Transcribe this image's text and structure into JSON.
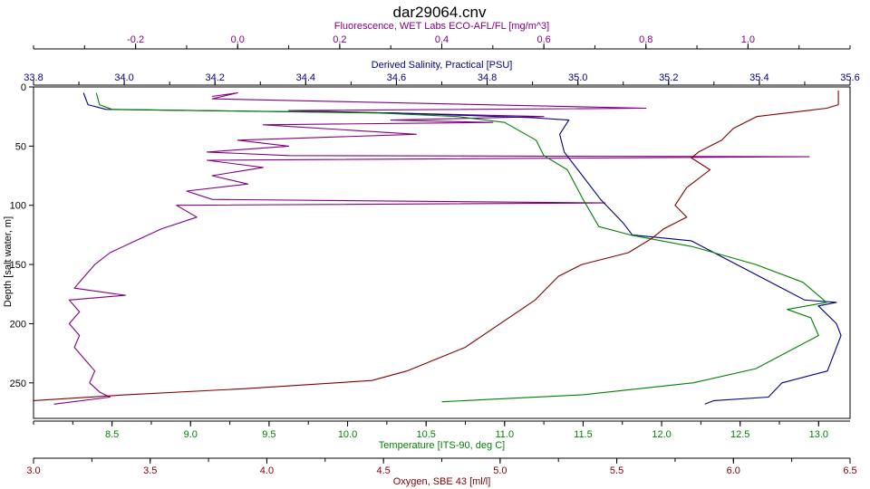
{
  "chart_data": {
    "type": "line",
    "title": "dar29064.cnv",
    "y_axis": {
      "label": "Depth [salt water, m]",
      "range": [
        0,
        280
      ],
      "ticks": [
        0,
        50,
        100,
        150,
        200,
        250
      ],
      "inverted": true
    },
    "x_axes": [
      {
        "id": "fluorescence",
        "position": "top-1",
        "label": "Fluorescence, WET Labs ECO-AFL/FL [mg/m^3]",
        "color": "#800080",
        "range": [
          -0.4,
          1.2
        ],
        "ticks": [
          -0.2,
          0.0,
          0.2,
          0.4,
          0.6,
          0.8,
          1.0
        ],
        "tick_labels": [
          "-0.2",
          "0.0",
          "0.2",
          "0.4",
          "0.6",
          "0.8",
          "1.0"
        ]
      },
      {
        "id": "salinity",
        "position": "top-2",
        "label": "Derived Salinity, Practical [PSU]",
        "color": "#000080",
        "range": [
          33.8,
          35.6
        ],
        "ticks": [
          33.8,
          34.0,
          34.2,
          34.4,
          34.6,
          34.8,
          35.0,
          35.2,
          35.4,
          35.6
        ],
        "tick_labels": [
          "33.8",
          "34.0",
          "34.2",
          "34.4",
          "34.6",
          "34.8",
          "35.0",
          "35.2",
          "35.4",
          "35.6"
        ]
      },
      {
        "id": "temperature",
        "position": "bottom-1",
        "label": "Temperature [ITS-90, deg C]",
        "color": "#008000",
        "range": [
          8.0,
          13.2
        ],
        "ticks": [
          8.5,
          9.0,
          9.5,
          10.0,
          10.5,
          11.0,
          11.5,
          12.0,
          12.5,
          13.0
        ],
        "tick_labels": [
          "8.5",
          "9.0",
          "9.5",
          "10.0",
          "10.5",
          "11.0",
          "11.5",
          "12.0",
          "12.5",
          "13.0"
        ]
      },
      {
        "id": "oxygen",
        "position": "bottom-2",
        "label": "Oxygen, SBE 43 [ml/l]",
        "color": "#800000",
        "range": [
          3.0,
          6.5
        ],
        "ticks": [
          3.0,
          3.5,
          4.0,
          4.5,
          5.0,
          5.5,
          6.0,
          6.5
        ],
        "tick_labels": [
          "3.0",
          "3.5",
          "4.0",
          "4.5",
          "5.0",
          "5.5",
          "6.0",
          "6.5"
        ]
      }
    ],
    "series": [
      {
        "axis": "fluorescence",
        "color": "#800080",
        "points": [
          [
            -0.05,
            8
          ],
          [
            0.0,
            5
          ],
          [
            -0.05,
            10
          ],
          [
            0.8,
            18
          ],
          [
            0.1,
            20
          ],
          [
            0.6,
            25
          ],
          [
            0.3,
            28
          ],
          [
            0.5,
            30
          ],
          [
            0.05,
            32
          ],
          [
            0.35,
            40
          ],
          [
            0.0,
            45
          ],
          [
            0.1,
            50
          ],
          [
            -0.06,
            55
          ],
          [
            0.1,
            58
          ],
          [
            1.12,
            59
          ],
          [
            -0.06,
            62
          ],
          [
            0.05,
            68
          ],
          [
            -0.05,
            75
          ],
          [
            0.02,
            82
          ],
          [
            -0.1,
            88
          ],
          [
            -0.05,
            95
          ],
          [
            0.72,
            98
          ],
          [
            -0.12,
            100
          ],
          [
            -0.08,
            110
          ],
          [
            -0.15,
            120
          ],
          [
            -0.2,
            130
          ],
          [
            -0.25,
            140
          ],
          [
            -0.28,
            150
          ],
          [
            -0.3,
            160
          ],
          [
            -0.32,
            170
          ],
          [
            -0.22,
            176
          ],
          [
            -0.33,
            180
          ],
          [
            -0.31,
            190
          ],
          [
            -0.33,
            200
          ],
          [
            -0.31,
            210
          ],
          [
            -0.32,
            220
          ],
          [
            -0.3,
            230
          ],
          [
            -0.28,
            240
          ],
          [
            -0.29,
            250
          ],
          [
            -0.27,
            258
          ],
          [
            -0.25,
            262
          ],
          [
            -0.36,
            268
          ]
        ]
      },
      {
        "axis": "salinity",
        "color": "#000080",
        "points": [
          [
            33.91,
            5
          ],
          [
            33.92,
            15
          ],
          [
            33.96,
            19
          ],
          [
            34.6,
            22
          ],
          [
            34.9,
            26
          ],
          [
            34.98,
            28
          ],
          [
            34.96,
            40
          ],
          [
            34.97,
            55
          ],
          [
            35.0,
            70
          ],
          [
            35.05,
            95
          ],
          [
            35.1,
            115
          ],
          [
            35.12,
            125
          ],
          [
            35.25,
            130
          ],
          [
            35.35,
            150
          ],
          [
            35.45,
            170
          ],
          [
            35.5,
            180
          ],
          [
            35.57,
            182
          ],
          [
            35.53,
            185
          ],
          [
            35.57,
            200
          ],
          [
            35.58,
            210
          ],
          [
            35.55,
            240
          ],
          [
            35.45,
            250
          ],
          [
            35.42,
            262
          ],
          [
            35.3,
            265
          ],
          [
            35.28,
            268
          ]
        ]
      },
      {
        "axis": "temperature",
        "color": "#008000",
        "points": [
          [
            8.4,
            5
          ],
          [
            8.42,
            15
          ],
          [
            8.5,
            19
          ],
          [
            10.2,
            22
          ],
          [
            10.7,
            25
          ],
          [
            11.0,
            30
          ],
          [
            11.2,
            45
          ],
          [
            11.25,
            58
          ],
          [
            11.4,
            70
          ],
          [
            11.5,
            95
          ],
          [
            11.6,
            118
          ],
          [
            11.8,
            125
          ],
          [
            12.2,
            135
          ],
          [
            12.6,
            150
          ],
          [
            12.9,
            165
          ],
          [
            13.05,
            182
          ],
          [
            12.8,
            188
          ],
          [
            12.95,
            195
          ],
          [
            13.0,
            210
          ],
          [
            12.6,
            238
          ],
          [
            12.2,
            250
          ],
          [
            11.5,
            260
          ],
          [
            10.9,
            264
          ],
          [
            10.6,
            266
          ]
        ]
      },
      {
        "axis": "oxygen",
        "color": "#800000",
        "points": [
          [
            6.45,
            3
          ],
          [
            6.45,
            15
          ],
          [
            6.4,
            18
          ],
          [
            6.1,
            25
          ],
          [
            6.0,
            35
          ],
          [
            5.95,
            45
          ],
          [
            5.85,
            55
          ],
          [
            5.82,
            60
          ],
          [
            5.9,
            70
          ],
          [
            5.8,
            85
          ],
          [
            5.75,
            100
          ],
          [
            5.8,
            110
          ],
          [
            5.7,
            120
          ],
          [
            5.65,
            128
          ],
          [
            5.55,
            140
          ],
          [
            5.35,
            150
          ],
          [
            5.25,
            160
          ],
          [
            5.15,
            180
          ],
          [
            5.0,
            200
          ],
          [
            4.85,
            220
          ],
          [
            4.6,
            240
          ],
          [
            4.45,
            248
          ],
          [
            3.9,
            255
          ],
          [
            3.4,
            260
          ],
          [
            3.0,
            265
          ]
        ]
      }
    ]
  }
}
